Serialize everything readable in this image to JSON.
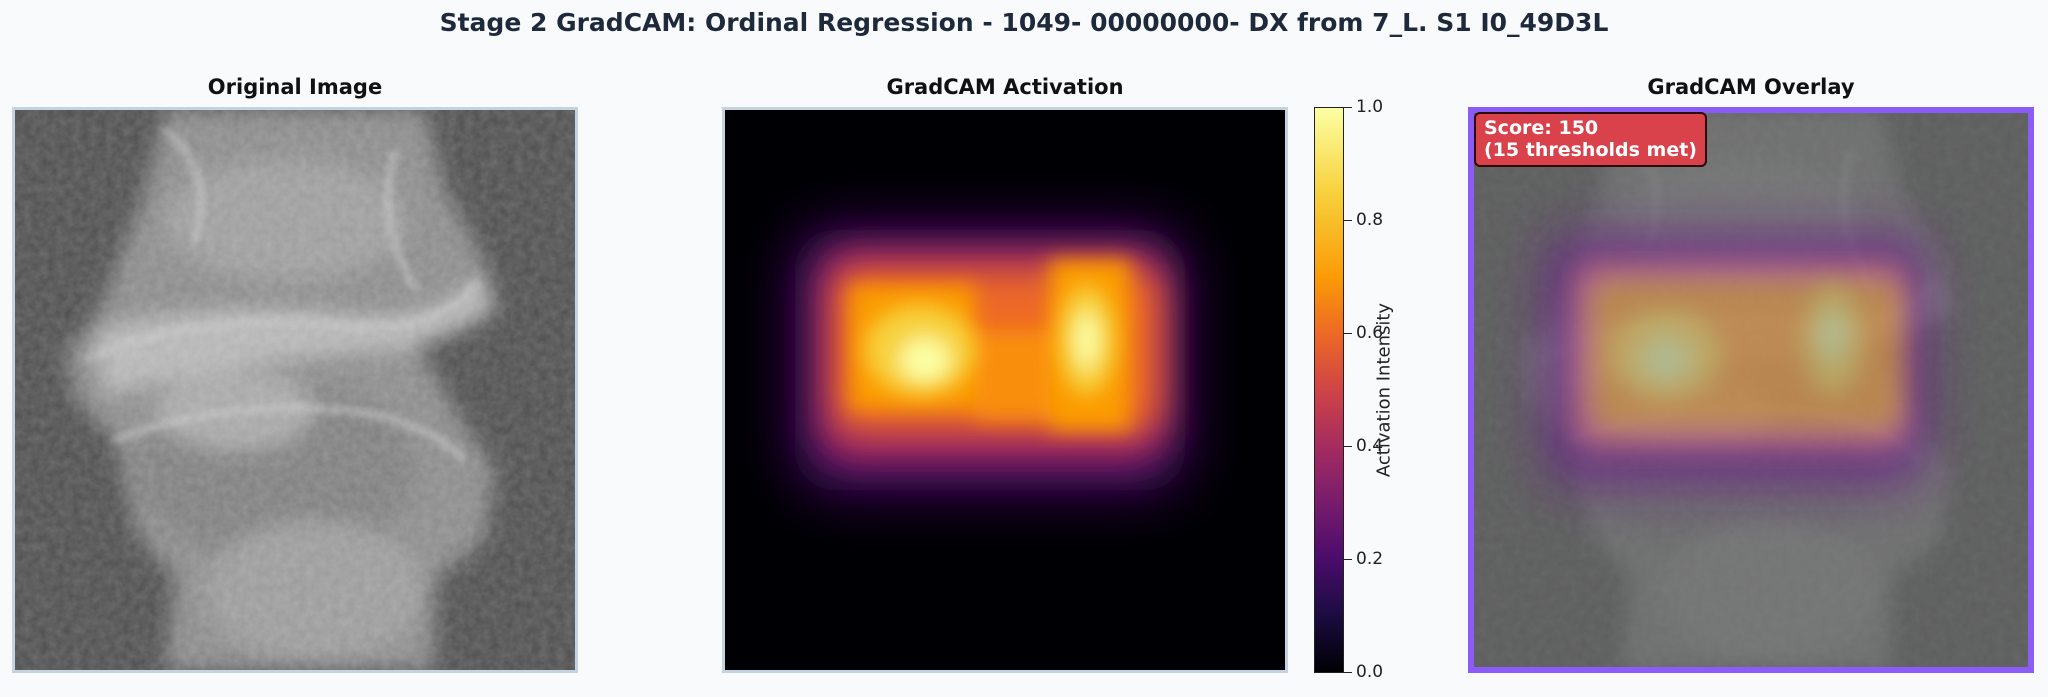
{
  "figure": {
    "title": "Stage 2 GradCAM: Ordinal Regression - 1049- 00000000- DX from 7_L. S1 I0_49D3L"
  },
  "panels": {
    "original": {
      "title": "Original Image"
    },
    "activation": {
      "title": "GradCAM Activation"
    },
    "overlay": {
      "title": "GradCAM Overlay"
    }
  },
  "colorbar": {
    "label": "Activation Intensity",
    "colormap": "inferno",
    "range": [
      0.0,
      1.0
    ],
    "ticks": [
      "0.0",
      "0.2",
      "0.4",
      "0.6",
      "0.8",
      "1.0"
    ]
  },
  "score_badge": {
    "line1": "Score: 150",
    "line2": "(15 thresholds met)"
  },
  "colors": {
    "background": "#f8fafc",
    "overlay_border": "#8b5cf6",
    "badge": "#d9414b",
    "frame": "#c3d3e0"
  }
}
